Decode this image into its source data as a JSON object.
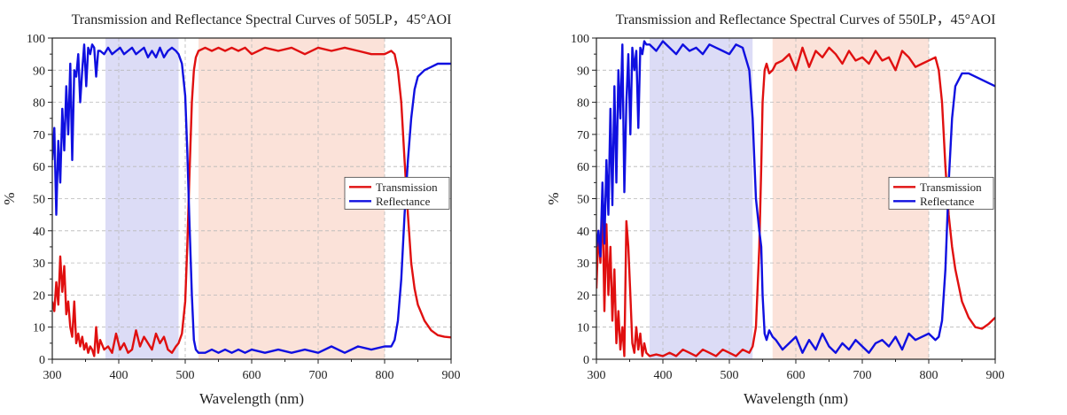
{
  "chart_data": [
    {
      "type": "line",
      "title": "Transmission and Reflectance Spectral Curves of 505LP，45°AOI",
      "xlabel": "Wavelength (nm)",
      "ylabel": "%",
      "xlim": [
        300,
        900
      ],
      "ylim": [
        0,
        100
      ],
      "xticks": [
        300,
        400,
        500,
        600,
        700,
        800,
        900
      ],
      "yticks": [
        0,
        10,
        20,
        30,
        40,
        50,
        60,
        70,
        80,
        90,
        100
      ],
      "grid": true,
      "legend_position": "right",
      "bands": [
        {
          "from": 380,
          "to": 490,
          "color": "#dcdcf6"
        },
        {
          "from": 520,
          "to": 800,
          "color": "#fbe2d9"
        }
      ],
      "series": [
        {
          "name": "Transmission",
          "color": "#e01010",
          "x": [
            300,
            303,
            306,
            309,
            312,
            315,
            318,
            321,
            324,
            327,
            330,
            333,
            336,
            339,
            342,
            345,
            348,
            351,
            354,
            357,
            360,
            363,
            366,
            369,
            372,
            378,
            384,
            390,
            396,
            402,
            408,
            414,
            420,
            426,
            432,
            438,
            444,
            450,
            456,
            462,
            468,
            474,
            480,
            486,
            490,
            495,
            500,
            503,
            506,
            510,
            513,
            516,
            520,
            530,
            540,
            550,
            560,
            570,
            580,
            590,
            600,
            620,
            640,
            660,
            680,
            700,
            720,
            740,
            760,
            780,
            800,
            810,
            815,
            820,
            825,
            830,
            835,
            840,
            845,
            850,
            860,
            870,
            880,
            890,
            900
          ],
          "y": [
            18,
            15,
            24,
            17,
            32,
            21,
            29,
            14,
            18,
            10,
            7,
            18,
            5,
            8,
            4,
            7,
            3,
            5,
            2,
            4,
            3,
            1,
            10,
            2,
            6,
            3,
            4,
            2,
            8,
            3,
            5,
            2,
            3,
            9,
            4,
            7,
            5,
            3,
            8,
            5,
            7,
            3,
            2,
            4,
            5,
            8,
            18,
            35,
            55,
            80,
            90,
            94,
            96,
            97,
            96,
            97,
            96,
            97,
            96,
            97,
            95,
            97,
            96,
            97,
            95,
            97,
            96,
            97,
            96,
            95,
            95,
            96,
            95,
            90,
            80,
            62,
            45,
            30,
            22,
            17,
            12,
            9,
            7.5,
            7,
            6.8
          ]
        },
        {
          "name": "Reflectance",
          "color": "#1010e0",
          "x": [
            300,
            303,
            306,
            309,
            312,
            315,
            318,
            321,
            324,
            327,
            330,
            333,
            336,
            339,
            342,
            345,
            348,
            351,
            354,
            357,
            360,
            363,
            366,
            369,
            372,
            378,
            384,
            390,
            396,
            402,
            408,
            414,
            420,
            426,
            432,
            438,
            444,
            450,
            456,
            462,
            468,
            474,
            480,
            486,
            490,
            495,
            500,
            503,
            506,
            510,
            513,
            516,
            520,
            530,
            540,
            550,
            560,
            570,
            580,
            590,
            600,
            620,
            640,
            660,
            680,
            700,
            720,
            740,
            760,
            780,
            800,
            810,
            815,
            820,
            825,
            830,
            835,
            840,
            845,
            850,
            860,
            870,
            880,
            890,
            900
          ],
          "y": [
            62,
            72,
            45,
            68,
            55,
            78,
            65,
            85,
            70,
            92,
            62,
            90,
            88,
            95,
            80,
            90,
            98,
            85,
            97,
            95,
            98,
            97,
            88,
            96,
            96,
            95,
            97,
            95,
            96,
            97,
            95,
            96,
            97,
            95,
            96,
            97,
            94,
            96,
            94,
            97,
            94,
            96,
            97,
            96,
            95,
            92,
            82,
            65,
            45,
            20,
            6,
            3,
            2,
            2,
            3,
            2,
            3,
            2,
            3,
            2,
            3,
            2,
            3,
            2,
            3,
            2,
            4,
            2,
            4,
            3,
            4,
            4,
            6,
            12,
            25,
            45,
            62,
            75,
            84,
            88,
            90,
            91,
            92,
            92,
            92
          ]
        }
      ]
    },
    {
      "type": "line",
      "title": "Transmission and Reflectance Spectral Curves of 550LP，45°AOI",
      "xlabel": "Wavelength (nm)",
      "ylabel": "%",
      "xlim": [
        300,
        900
      ],
      "ylim": [
        0,
        100
      ],
      "xticks": [
        300,
        400,
        500,
        600,
        700,
        800,
        900
      ],
      "yticks": [
        0,
        10,
        20,
        30,
        40,
        50,
        60,
        70,
        80,
        90,
        100
      ],
      "grid": true,
      "legend_position": "right",
      "bands": [
        {
          "from": 380,
          "to": 535,
          "color": "#dcdcf6"
        },
        {
          "from": 565,
          "to": 800,
          "color": "#fbe2d9"
        }
      ],
      "series": [
        {
          "name": "Transmission",
          "color": "#e01010",
          "x": [
            300,
            303,
            306,
            309,
            312,
            315,
            318,
            321,
            324,
            327,
            330,
            333,
            336,
            339,
            342,
            345,
            348,
            351,
            354,
            357,
            360,
            363,
            366,
            369,
            372,
            375,
            380,
            390,
            400,
            410,
            420,
            430,
            440,
            450,
            460,
            470,
            480,
            490,
            500,
            510,
            520,
            530,
            535,
            540,
            545,
            548,
            550,
            553,
            556,
            560,
            565,
            570,
            580,
            590,
            600,
            610,
            620,
            630,
            640,
            650,
            660,
            670,
            680,
            690,
            700,
            710,
            720,
            730,
            740,
            750,
            760,
            770,
            780,
            790,
            800,
            810,
            815,
            820,
            825,
            830,
            835,
            840,
            850,
            860,
            870,
            880,
            890,
            900
          ],
          "y": [
            22,
            40,
            30,
            50,
            15,
            42,
            20,
            35,
            12,
            28,
            5,
            15,
            3,
            10,
            1,
            43,
            35,
            20,
            5,
            2,
            10,
            3,
            8,
            1,
            5,
            2,
            1,
            1.5,
            1,
            2,
            1,
            3,
            2,
            1,
            3,
            2,
            1,
            3,
            2,
            1,
            3,
            2,
            4,
            10,
            35,
            60,
            80,
            90,
            92,
            89,
            90,
            92,
            93,
            95,
            90,
            97,
            91,
            96,
            94,
            97,
            95,
            92,
            96,
            93,
            94,
            92,
            96,
            93,
            94,
            90,
            96,
            94,
            91,
            92,
            93,
            94,
            90,
            80,
            60,
            45,
            35,
            28,
            18,
            13,
            10,
            9.5,
            11,
            13
          ]
        },
        {
          "name": "Reflectance",
          "color": "#1010e0",
          "x": [
            300,
            303,
            306,
            309,
            312,
            315,
            318,
            321,
            324,
            327,
            330,
            333,
            336,
            339,
            342,
            345,
            348,
            351,
            354,
            357,
            360,
            363,
            366,
            369,
            372,
            375,
            380,
            390,
            400,
            410,
            420,
            430,
            440,
            450,
            460,
            470,
            480,
            490,
            500,
            510,
            520,
            530,
            535,
            540,
            545,
            548,
            550,
            553,
            556,
            560,
            565,
            570,
            580,
            590,
            600,
            610,
            620,
            630,
            640,
            650,
            660,
            670,
            680,
            690,
            700,
            710,
            720,
            730,
            740,
            750,
            760,
            770,
            780,
            790,
            800,
            810,
            815,
            820,
            825,
            830,
            835,
            840,
            850,
            860,
            870,
            880,
            890,
            900
          ],
          "y": [
            35,
            40,
            32,
            55,
            36,
            62,
            45,
            78,
            48,
            85,
            55,
            90,
            75,
            98,
            52,
            80,
            95,
            70,
            97,
            90,
            96,
            72,
            97,
            95,
            99,
            98,
            98,
            96,
            99,
            97,
            95,
            98,
            96,
            97,
            95,
            98,
            97,
            96,
            95,
            98,
            97,
            90,
            75,
            50,
            40,
            35,
            20,
            8,
            6,
            9,
            7,
            6,
            3,
            5,
            7,
            2,
            6,
            3,
            8,
            4,
            2,
            5,
            3,
            6,
            4,
            2,
            5,
            6,
            4,
            7,
            3,
            8,
            6,
            7,
            8,
            6,
            7,
            12,
            28,
            55,
            75,
            85,
            89,
            89,
            88,
            87,
            86,
            85
          ]
        }
      ]
    }
  ]
}
